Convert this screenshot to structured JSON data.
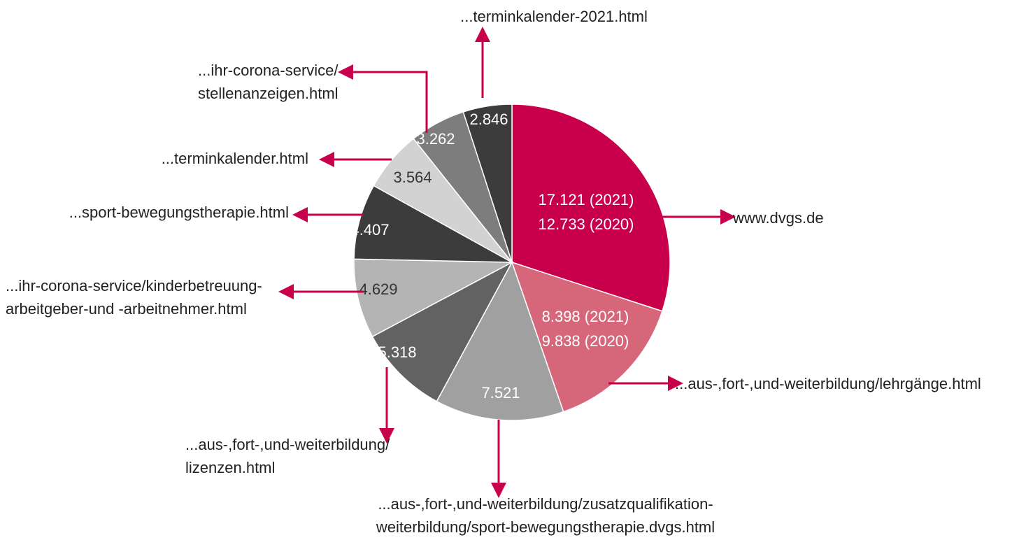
{
  "chart_data": {
    "type": "pie",
    "categories": [
      [
        "www.dvgs.de"
      ],
      [
        "...aus-,fort-,und-weiterbildung/lehrgänge.html"
      ],
      [
        "...aus-,fort-,und-weiterbildung/zusatzqualifikation-",
        "weiterbildung/sport-bewegungstherapie.dvgs.html"
      ],
      [
        "...aus-,fort-,und-weiterbildung/",
        "lizenzen.html"
      ],
      [
        "...ihr-corona-service/kinderbetreuung-",
        "arbeitgeber-und -arbeitnehmer.html"
      ],
      [
        "...sport-bewegungstherapie.html"
      ],
      [
        "...terminkalender.html"
      ],
      [
        "...ihr-corona-service/",
        "stellenanzeigen.html"
      ],
      [
        "...terminkalender-2021.html"
      ]
    ],
    "values": [
      17121,
      8398,
      7521,
      5318,
      4629,
      4407,
      3564,
      3262,
      2846
    ],
    "value_labels": [
      "17.121 (2021)",
      "8.398 (2021)",
      "7.521",
      "5.318",
      "4.629",
      "4.407",
      "3.564",
      "3.262",
      "2.846"
    ],
    "labels_2020": [
      "12.733 (2020)",
      "9.838 (2020)",
      null,
      null,
      null,
      null,
      null,
      null,
      null
    ],
    "colors": [
      "#c8004b",
      "#d6677a",
      "#a0a0a0",
      "#626262",
      "#b4b4b4",
      "#3c3c3c",
      "#d2d2d2",
      "#7d7d7d",
      "#3c3c3c"
    ],
    "arrow_color": "#c8004b"
  }
}
